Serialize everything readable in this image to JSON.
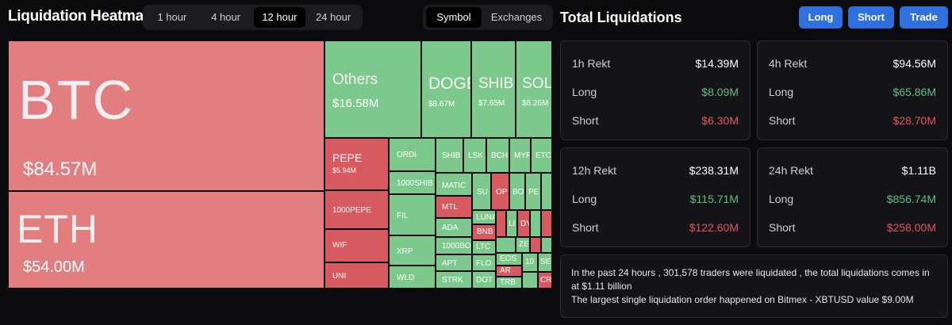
{
  "header": {
    "title": "Liquidation Heatmap",
    "time_options": [
      "1 hour",
      "4 hour",
      "12 hour",
      "24 hour"
    ],
    "time_selected": "12 hour",
    "view_options": [
      "Symbol",
      "Exchanges"
    ],
    "view_selected": "Symbol"
  },
  "panel": {
    "title": "Total Liquidations",
    "buttons": [
      "Long",
      "Short",
      "Trade"
    ]
  },
  "heatmap": {
    "btc": {
      "symbol": "BTC",
      "value": "$84.57M"
    },
    "eth": {
      "symbol": "ETH",
      "value": "$54.00M"
    },
    "others": {
      "symbol": "Others",
      "value": "$16.58M"
    },
    "doge": {
      "symbol": "DOGE",
      "value": "$8.67M"
    },
    "shib_top": {
      "symbol": "SHIB",
      "value": "$7.65M"
    },
    "sol": {
      "symbol": "SOL",
      "value": "$6.26M"
    },
    "pepe": {
      "symbol": "PEPE",
      "value": "$5.94M"
    },
    "small": [
      "1000PEPE",
      "WIF",
      "UNI",
      "ORDI",
      "1000SHIB",
      "FIL",
      "XRP",
      "WLD",
      "SHIB",
      "LSK",
      "BCH",
      "MYR",
      "ETC",
      "MATIC",
      "SU",
      "OP",
      "BO",
      "PE",
      "MTL",
      "ADA",
      "LUNA",
      "1000BO",
      "LTC",
      "APT",
      "FLO",
      "STRK",
      "DOT",
      "BNB",
      "EOS",
      "AR",
      "TRB",
      "LI",
      "DY",
      "ZE",
      "10",
      "SE",
      "CR"
    ]
  },
  "stats": {
    "h1": {
      "title": "1h Rekt",
      "total": "$14.39M",
      "long_label": "Long",
      "long": "$8.09M",
      "short_label": "Short",
      "short": "$6.30M"
    },
    "h4": {
      "title": "4h Rekt",
      "total": "$94.56M",
      "long_label": "Long",
      "long": "$65.86M",
      "short_label": "Short",
      "short": "$28.70M"
    },
    "h12": {
      "title": "12h Rekt",
      "total": "$238.31M",
      "long_label": "Long",
      "long": "$115.71M",
      "short_label": "Short",
      "short": "$122.60M"
    },
    "h24": {
      "title": "24h Rekt",
      "total": "$1.11B",
      "long_label": "Long",
      "long": "$856.74M",
      "short_label": "Short",
      "short": "$258.00M"
    }
  },
  "summary": {
    "line1": "In the past 24 hours , 301,578 traders were liquidated , the total liquidations comes in at $1.11 billion",
    "line2": "The largest single liquidation order happened on Bitmex - XBTUSD value $9.00M"
  },
  "colors": {
    "accent": "#2f6fde",
    "long_green": "#5fbf83",
    "short_red": "#e0575e",
    "tile_green": "#7dc88d",
    "tile_red": "#d65a60"
  }
}
